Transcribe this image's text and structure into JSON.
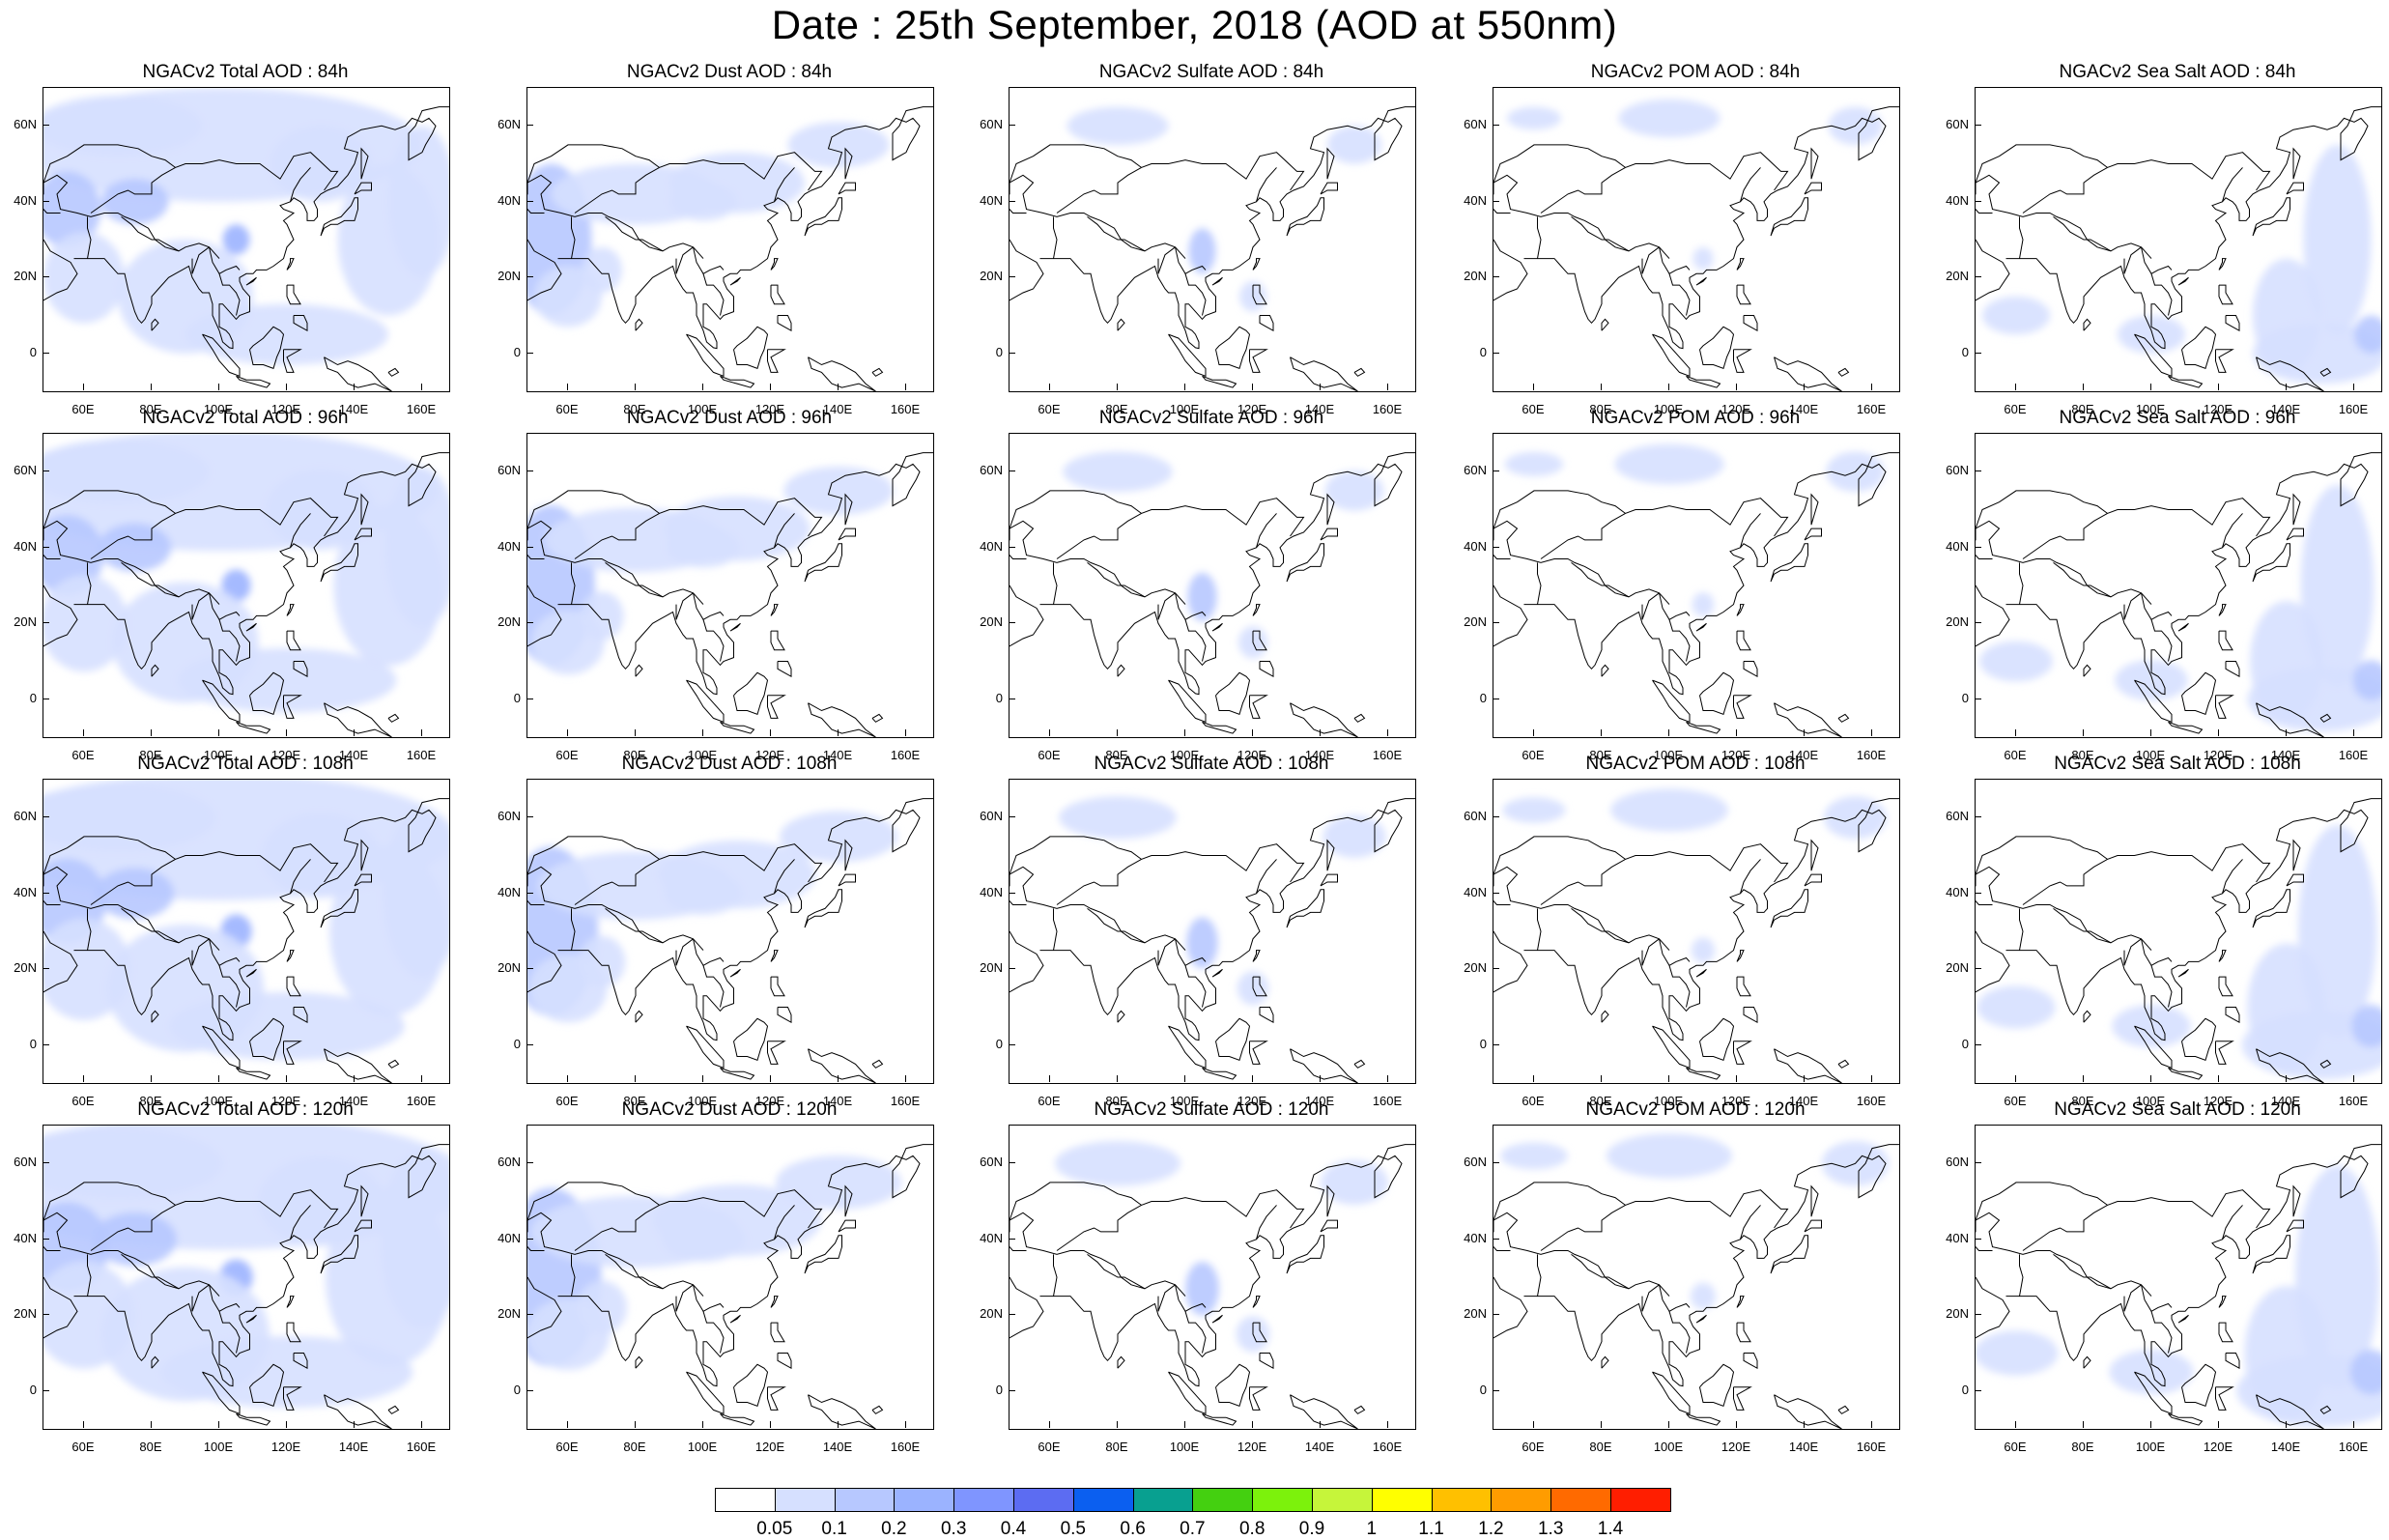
{
  "title": "Date : 25th September, 2018 (AOD at 550nm)",
  "panels": [
    [
      "NGACv2 Total AOD : 84h",
      "NGACv2 Dust AOD : 84h",
      "NGACv2 Sulfate AOD : 84h",
      "NGACv2 POM AOD : 84h",
      "NGACv2 Sea Salt AOD : 84h"
    ],
    [
      "NGACv2 Total AOD : 96h",
      "NGACv2 Dust AOD : 96h",
      "NGACv2 Sulfate AOD : 96h",
      "NGACv2 POM AOD : 96h",
      "NGACv2 Sea Salt AOD : 96h"
    ],
    [
      "NGACv2 Total AOD : 108h",
      "NGACv2 Dust AOD : 108h",
      "NGACv2 Sulfate AOD : 108h",
      "NGACv2 POM AOD : 108h",
      "NGACv2 Sea Salt AOD : 108h"
    ],
    [
      "NGACv2 Total AOD : 120h",
      "NGACv2 Dust AOD : 120h",
      "NGACv2 Sulfate AOD : 120h",
      "NGACv2 POM AOD : 120h",
      "NGACv2 Sea Salt  AOD : 120h"
    ]
  ],
  "lat_labels": [
    "60N",
    "40N",
    "20N",
    "0"
  ],
  "lon_labels": [
    "60E",
    "80E",
    "100E",
    "120E",
    "140E",
    "160E"
  ],
  "colorbar": {
    "labels": [
      "0.05",
      "0.1",
      "0.2",
      "0.3",
      "0.4",
      "0.5",
      "0.6",
      "0.7",
      "0.8",
      "0.9",
      "1",
      "1.1",
      "1.2",
      "1.3",
      "1.4"
    ],
    "colors": [
      "#ffffff",
      "#d6e0ff",
      "#b7c8ff",
      "#9bb3ff",
      "#7f95ff",
      "#5c6cf2",
      "#0b5ff0",
      "#08a090",
      "#44d010",
      "#7cf20c",
      "#c6f53a",
      "#ffff00",
      "#ffc000",
      "#ff9c00",
      "#ff6a00",
      "#ff1e00"
    ]
  },
  "map_extent": {
    "lon": [
      48,
      168
    ],
    "lat": [
      -10,
      70
    ]
  }
}
